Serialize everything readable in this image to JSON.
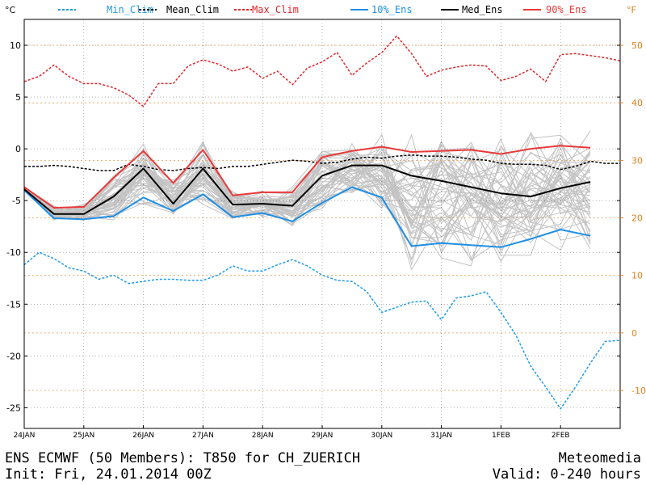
{
  "chart_data": {
    "type": "line",
    "title": "ENS ECMWF (50 Members): T850 for CH_ZUERICH",
    "init_text": "Init: Fri, 24.01.2014 00Z",
    "brand_text": "Meteomedia",
    "valid_text": "Valid: 0-240 hours",
    "y_unit_left": "°C",
    "y_unit_right": "°F",
    "ylim": [
      -27,
      12.5
    ],
    "xlim": [
      0,
      240
    ],
    "y_ticks": [
      10,
      5,
      0,
      -5,
      -10,
      -15,
      -20,
      -25
    ],
    "y_tick_labels": [
      "10",
      "5",
      "0",
      "-5",
      "-10",
      "-15",
      "-20",
      "-25"
    ],
    "f_ticks": [
      50,
      40,
      30,
      20,
      10,
      0,
      -10
    ],
    "f_tick_labels": [
      "50",
      "40",
      "30",
      "20",
      "10",
      "0",
      "-10"
    ],
    "x_ticks": [
      0,
      24,
      48,
      72,
      96,
      120,
      144,
      168,
      192,
      216
    ],
    "x_tick_labels": [
      "24JAN",
      "25JAN",
      "26JAN",
      "27JAN",
      "28JAN",
      "29JAN",
      "30JAN",
      "31JAN",
      "1FEB",
      "2FEB"
    ],
    "grid": true,
    "legend_position": "top",
    "colors": {
      "min_clim": "#1e9be6",
      "mean_clim": "#000000",
      "max_clim": "#e0262b",
      "ens10": "#1e8fe6",
      "med": "#000000",
      "ens90": "#e83a3a",
      "members": "#c3c3c3",
      "fahrenheit": "#e08020",
      "grid_f": "#e89a50"
    },
    "series": [
      {
        "key": "min_clim",
        "name": "Min_Clim",
        "style": "dashed",
        "x": [
          0,
          6,
          12,
          18,
          24,
          30,
          36,
          42,
          48,
          54,
          60,
          66,
          72,
          78,
          84,
          90,
          96,
          102,
          108,
          114,
          120,
          126,
          132,
          138,
          144,
          150,
          156,
          162,
          168,
          174,
          180,
          186,
          192,
          198,
          204,
          210,
          216,
          222,
          228,
          234,
          240
        ],
        "y": [
          -11.2,
          -10,
          -10.6,
          -11.5,
          -11.8,
          -12.6,
          -12.2,
          -13,
          -12.8,
          -12.6,
          -12.6,
          -12.7,
          -12.7,
          -12.2,
          -11.3,
          -11.8,
          -11.8,
          -11.2,
          -10.7,
          -11.3,
          -12.2,
          -12.7,
          -12.8,
          -13.8,
          -15.8,
          -15.3,
          -14.8,
          -14.7,
          -16.5,
          -14.4,
          -14.2,
          -13.8,
          -15.8,
          -18,
          -21,
          -23,
          -25.1,
          -23,
          -20.7,
          -18.6,
          -18.5
        ],
        "values": [
          -11.2,
          -10,
          -10.6,
          -11.5,
          -11.8,
          -12.6,
          -12.2,
          -13,
          -12.8,
          -12.6,
          -12.6,
          -12.7,
          -12.7,
          -12.2,
          -11.3,
          -11.8,
          -11.8,
          -11.2,
          -10.7,
          -11.3,
          -12.2,
          -12.7,
          -12.8,
          -13.8,
          -15.8,
          -15.3,
          -14.8,
          -14.7,
          -16.5,
          -14.4,
          -14.2,
          -13.8,
          -15.8,
          -18,
          -21,
          -23,
          -25.1,
          -23,
          -20.7,
          -18.6,
          -18.5
        ]
      },
      {
        "key": "mean_clim",
        "name": "Mean_Clim",
        "style": "dashed",
        "x": [
          0,
          6,
          12,
          18,
          24,
          30,
          36,
          42,
          48,
          54,
          60,
          66,
          72,
          78,
          84,
          90,
          96,
          102,
          108,
          114,
          120,
          126,
          132,
          138,
          144,
          150,
          156,
          162,
          168,
          174,
          180,
          186,
          192,
          198,
          204,
          210,
          216,
          222,
          228,
          234,
          240
        ],
        "y": [
          -1.7,
          -1.7,
          -1.6,
          -1.7,
          -1.9,
          -2.1,
          -2.1,
          -1.5,
          -1.7,
          -2,
          -2.1,
          -1.9,
          -1.8,
          -1.9,
          -1.7,
          -1.7,
          -1.5,
          -1.3,
          -1.1,
          -1.2,
          -1.4,
          -1.3,
          -1.0,
          -0.8,
          -0.9,
          -0.7,
          -0.6,
          -0.7,
          -0.7,
          -0.8,
          -1,
          -1.1,
          -1.4,
          -1.5,
          -1.5,
          -1.6,
          -2,
          -1.7,
          -1.2,
          -1.4,
          -1.4
        ],
        "values": [
          -1.7,
          -1.7,
          -1.6,
          -1.7,
          -1.9,
          -2.1,
          -2.1,
          -1.5,
          -1.7,
          -2,
          -2.1,
          -1.9,
          -1.8,
          -1.9,
          -1.7,
          -1.7,
          -1.5,
          -1.3,
          -1.1,
          -1.2,
          -1.4,
          -1.3,
          -1.0,
          -0.8,
          -0.9,
          -0.7,
          -0.6,
          -0.7,
          -0.7,
          -0.8,
          -1,
          -1.1,
          -1.4,
          -1.5,
          -1.5,
          -1.6,
          -2,
          -1.7,
          -1.2,
          -1.4,
          -1.4
        ]
      },
      {
        "key": "max_clim",
        "name": "Max_Clim",
        "style": "dashed",
        "x": [
          0,
          6,
          12,
          18,
          24,
          30,
          36,
          42,
          48,
          54,
          60,
          66,
          72,
          78,
          84,
          90,
          96,
          102,
          108,
          114,
          120,
          126,
          132,
          138,
          144,
          150,
          156,
          162,
          168,
          174,
          180,
          186,
          192,
          198,
          204,
          210,
          216,
          222,
          228,
          234,
          240
        ],
        "y": [
          6.5,
          7.0,
          8.1,
          7.0,
          6.3,
          6.3,
          5.9,
          5.2,
          4.1,
          6.3,
          6.3,
          8.0,
          8.6,
          8.2,
          7.5,
          7.9,
          6.8,
          7.5,
          6.2,
          7.8,
          8.4,
          9.3,
          7.1,
          8.3,
          9.3,
          10.9,
          9.2,
          7.0,
          7.6,
          7.9,
          8.1,
          8.0,
          6.6,
          7.0,
          7.7,
          6.5,
          9.1,
          9.2,
          9.0,
          8.8,
          8.5
        ],
        "values": [
          6.5,
          7.0,
          8.1,
          7.0,
          6.3,
          6.3,
          5.9,
          5.2,
          4.1,
          6.3,
          6.3,
          8.0,
          8.6,
          8.2,
          7.5,
          7.9,
          6.8,
          7.5,
          6.2,
          7.8,
          8.4,
          9.3,
          7.1,
          8.3,
          9.3,
          10.9,
          9.2,
          7.0,
          7.6,
          7.9,
          8.1,
          8.0,
          6.6,
          7.0,
          7.7,
          6.5,
          9.1,
          9.2,
          9.0,
          8.8,
          8.5
        ]
      },
      {
        "key": "ens10",
        "name": "10%_Ens",
        "style": "solid",
        "x": [
          0,
          12,
          24,
          36,
          48,
          60,
          72,
          84,
          96,
          108,
          120,
          132,
          144,
          156,
          168,
          180,
          192,
          204,
          216,
          228
        ],
        "y": [
          -4,
          -6.7,
          -6.8,
          -6.5,
          -4.7,
          -6,
          -4.4,
          -6.6,
          -6.2,
          -7,
          -5.2,
          -3.7,
          -4.7,
          -9.4,
          -9.1,
          -9.3,
          -9.5,
          -8.7,
          -7.8,
          -8.4
        ],
        "values": [
          -4,
          -6.7,
          -6.8,
          -6.5,
          -4.7,
          -6,
          -4.4,
          -6.6,
          -6.2,
          -7,
          -5.2,
          -3.7,
          -4.7,
          -9.4,
          -9.1,
          -9.3,
          -9.5,
          -8.7,
          -7.8,
          -8.4
        ]
      },
      {
        "key": "med",
        "name": "Med_Ens",
        "style": "solid",
        "x": [
          0,
          12,
          24,
          36,
          48,
          60,
          72,
          84,
          96,
          108,
          120,
          132,
          144,
          156,
          168,
          180,
          192,
          204,
          216,
          228
        ],
        "y": [
          -3.9,
          -6.3,
          -6.3,
          -4.6,
          -1.9,
          -5.3,
          -1.9,
          -5.4,
          -5.3,
          -5.5,
          -2.6,
          -1.6,
          -1.6,
          -2.6,
          -3.1,
          -3.7,
          -4.3,
          -4.6,
          -3.8,
          -3.2
        ],
        "values": [
          -3.9,
          -6.3,
          -6.3,
          -4.6,
          -1.9,
          -5.3,
          -1.9,
          -5.4,
          -5.3,
          -5.5,
          -2.6,
          -1.6,
          -1.6,
          -2.6,
          -3.1,
          -3.7,
          -4.3,
          -4.6,
          -3.8,
          -3.2
        ]
      },
      {
        "key": "ens90",
        "name": "90%_Ens",
        "style": "solid",
        "x": [
          0,
          12,
          24,
          36,
          48,
          60,
          72,
          84,
          96,
          108,
          120,
          132,
          144,
          156,
          168,
          180,
          192,
          204,
          216,
          228
        ],
        "y": [
          -3.7,
          -5.7,
          -5.6,
          -2.8,
          -0.2,
          -3.3,
          -0.1,
          -4.5,
          -4.2,
          -4.2,
          -0.8,
          -0.2,
          0.2,
          -0.3,
          -0.2,
          -0.1,
          -0.5,
          0.0,
          0.3,
          0.1
        ],
        "values": [
          -3.7,
          -5.7,
          -5.6,
          -2.8,
          -0.2,
          -3.3,
          -0.1,
          -4.5,
          -4.2,
          -4.2,
          -0.8,
          -0.2,
          0.2,
          -0.3,
          -0.2,
          -0.1,
          -0.5,
          0.0,
          0.3,
          0.1
        ]
      }
    ]
  }
}
